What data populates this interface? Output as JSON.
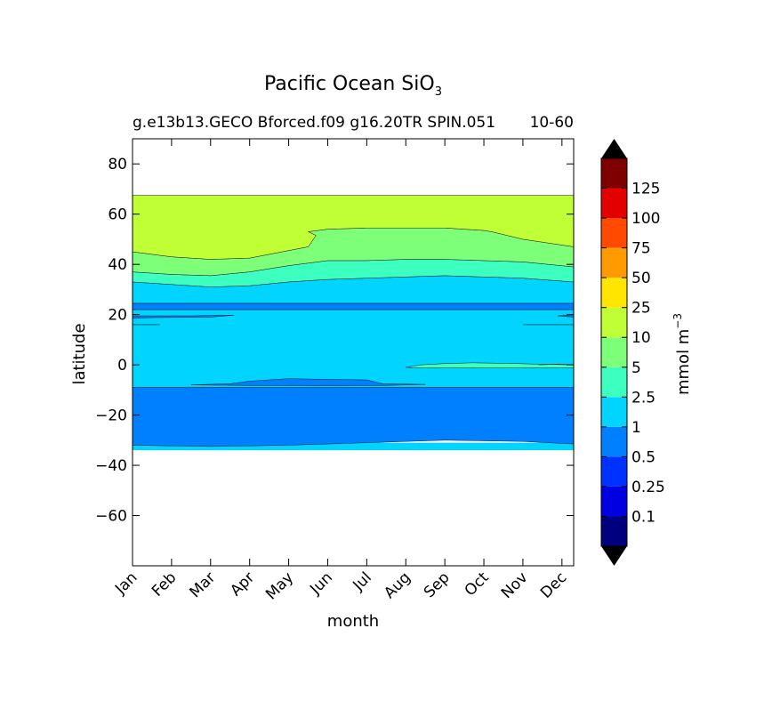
{
  "chart_data": {
    "type": "heatmap",
    "title": "Pacific Ocean SiO",
    "title_subscript": "3",
    "subtitle_left": "g.e13b13.GECO Bforced.f09 g16.20TR SPIN.051",
    "subtitle_right": "10-60",
    "xlabel": "month",
    "ylabel": "latitude",
    "x_categories": [
      "Jan",
      "Feb",
      "Mar",
      "Apr",
      "May",
      "Jun",
      "Jul",
      "Aug",
      "Sep",
      "Oct",
      "Nov",
      "Dec"
    ],
    "xlim": [
      0,
      11.3
    ],
    "ylim": [
      -80,
      90
    ],
    "y_ticks": [
      80,
      60,
      40,
      20,
      0,
      -20,
      -40,
      -60
    ],
    "y_tick_labels": [
      "80",
      "60",
      "40",
      "20",
      "0",
      "−20",
      "−40",
      "−60"
    ],
    "grid": false,
    "colorbar": {
      "label_text": "mmol m",
      "label_superscript": "−3",
      "levels": [
        0,
        0.1,
        0.25,
        0.5,
        1,
        2.5,
        5,
        10,
        25,
        50,
        75,
        100,
        125,
        150
      ],
      "tick_labels": [
        "0.1",
        "0.25",
        "0.5",
        "1",
        "2.5",
        "5",
        "10",
        "25",
        "50",
        "75",
        "100",
        "125"
      ],
      "colors": [
        "#00007f",
        "#0000e0",
        "#0032ff",
        "#0080ff",
        "#00d4ff",
        "#3dffc0",
        "#7eff7a",
        "#c0ff36",
        "#ffe500",
        "#ff9a00",
        "#ff4a00",
        "#e30000",
        "#7f0000"
      ],
      "extend_colors": [
        "#000000",
        "#000000"
      ]
    },
    "regions": [
      {
        "level": 1,
        "color": "#00d4ff",
        "upper": [
          [
            0,
            -34
          ],
          [
            11.3,
            -34
          ]
        ],
        "lower": [
          [
            0,
            -34
          ],
          [
            11.3,
            -34
          ]
        ],
        "note_fill": "band -34 to -31"
      },
      {
        "level": 0.5,
        "color": "#0080ff",
        "upper": [
          [
            0,
            -9
          ],
          [
            11.3,
            -9
          ]
        ],
        "lower": [
          [
            0,
            -32
          ],
          [
            2,
            -32.5
          ],
          [
            4,
            -32
          ],
          [
            6,
            -31
          ],
          [
            8,
            -30
          ],
          [
            10,
            -30.5
          ],
          [
            11.3,
            -31.5
          ]
        ]
      },
      {
        "level": 1,
        "color": "#00d4ff",
        "upper": [
          [
            0,
            22
          ],
          [
            11.3,
            22
          ]
        ],
        "lower": [
          [
            0,
            -9
          ],
          [
            11.3,
            -9
          ]
        ]
      },
      {
        "level": 0.5,
        "color": "#0080ff",
        "upper": [
          [
            0,
            24.5
          ],
          [
            11.3,
            24.5
          ]
        ],
        "lower": [
          [
            0,
            22
          ],
          [
            11.3,
            22
          ]
        ]
      },
      {
        "level": 1,
        "color": "#00d4ff",
        "upper": [
          [
            0,
            33
          ],
          [
            1,
            32
          ],
          [
            2,
            31
          ],
          [
            3,
            31.5
          ],
          [
            4,
            33
          ],
          [
            5,
            34
          ],
          [
            6,
            34.5
          ],
          [
            7,
            35
          ],
          [
            8,
            35.5
          ],
          [
            9,
            35
          ],
          [
            10,
            34.5
          ],
          [
            11.3,
            33
          ]
        ],
        "lower": [
          [
            0,
            24.5
          ],
          [
            11.3,
            24.5
          ]
        ]
      },
      {
        "level": 2.5,
        "color": "#3dffc0",
        "upper": [
          [
            0,
            37
          ],
          [
            1,
            36
          ],
          [
            2,
            35.5
          ],
          [
            3,
            37
          ],
          [
            4,
            39.5
          ],
          [
            5,
            41.5
          ],
          [
            6,
            41.5
          ],
          [
            7,
            42
          ],
          [
            8,
            42
          ],
          [
            9,
            41.5
          ],
          [
            10,
            41
          ],
          [
            11.3,
            39
          ]
        ],
        "lower": [
          [
            0,
            33
          ],
          [
            1,
            32
          ],
          [
            2,
            31
          ],
          [
            3,
            31.5
          ],
          [
            4,
            33
          ],
          [
            5,
            34
          ],
          [
            6,
            34.5
          ],
          [
            7,
            35
          ],
          [
            8,
            35.5
          ],
          [
            9,
            35
          ],
          [
            10,
            34.5
          ],
          [
            11.3,
            33
          ]
        ]
      },
      {
        "level": 5,
        "color": "#7eff7a",
        "upper": [
          [
            0,
            45
          ],
          [
            1,
            43
          ],
          [
            2,
            42
          ],
          [
            3,
            42.5
          ],
          [
            3.5,
            44
          ],
          [
            4,
            45.5
          ],
          [
            4.5,
            47
          ],
          [
            4.7,
            51.5
          ],
          [
            4.5,
            53
          ],
          [
            5,
            54
          ],
          [
            6,
            54.5
          ],
          [
            7,
            54.5
          ],
          [
            8,
            54.5
          ],
          [
            9,
            53.5
          ],
          [
            9.2,
            53
          ],
          [
            10,
            50
          ],
          [
            11.3,
            47
          ]
        ],
        "lower": [
          [
            0,
            37
          ],
          [
            1,
            36
          ],
          [
            2,
            35.5
          ],
          [
            3,
            37
          ],
          [
            4,
            39.5
          ],
          [
            5,
            41.5
          ],
          [
            6,
            41.5
          ],
          [
            7,
            42
          ],
          [
            8,
            42
          ],
          [
            9,
            41.5
          ],
          [
            10,
            41
          ],
          [
            11.3,
            39
          ]
        ]
      },
      {
        "level": 10,
        "color": "#c0ff36",
        "upper": [
          [
            0,
            67.5
          ],
          [
            11.3,
            67.5
          ]
        ],
        "lower": [
          [
            0,
            45
          ],
          [
            1,
            43
          ],
          [
            2,
            42
          ],
          [
            3,
            42.5
          ],
          [
            3.5,
            44
          ],
          [
            4,
            45.5
          ],
          [
            4.5,
            47
          ],
          [
            4.7,
            51.5
          ],
          [
            4.5,
            53
          ],
          [
            5,
            54
          ],
          [
            6,
            54.5
          ],
          [
            7,
            54.5
          ],
          [
            8,
            54.5
          ],
          [
            9,
            53.5
          ],
          [
            9.2,
            53
          ],
          [
            10,
            50
          ],
          [
            11.3,
            47
          ]
        ]
      }
    ],
    "patches": [
      {
        "level": 2.5,
        "color": "#3dffc0",
        "points": [
          [
            7,
            -1
          ],
          [
            7.4,
            0
          ],
          [
            8,
            0.5
          ],
          [
            8.7,
            0.8
          ],
          [
            9.6,
            0.6
          ],
          [
            10.3,
            0.3
          ],
          [
            11.3,
            0
          ],
          [
            11.3,
            -1.2
          ],
          [
            10.3,
            -1.2
          ],
          [
            9.5,
            -1.3
          ],
          [
            8.5,
            -1.2
          ],
          [
            7.5,
            -1.3
          ]
        ]
      },
      {
        "level": 0.5,
        "color": "#0080ff",
        "points": [
          [
            1.5,
            -8
          ],
          [
            2.5,
            -7.5
          ],
          [
            3,
            -6.5
          ],
          [
            3.5,
            -6
          ],
          [
            4,
            -5.5
          ],
          [
            5,
            -5.8
          ],
          [
            6,
            -6
          ],
          [
            6.4,
            -7.5
          ],
          [
            7.5,
            -7.8
          ],
          [
            6.5,
            -8.2
          ],
          [
            5,
            -8.3
          ],
          [
            3,
            -8.2
          ]
        ]
      },
      {
        "level": 0.5,
        "color": "#0080ff",
        "points": [
          [
            0,
            19.5
          ],
          [
            1.5,
            19.5
          ],
          [
            2.6,
            19.8
          ],
          [
            2,
            19
          ],
          [
            0.5,
            18.8
          ],
          [
            0,
            18.5
          ]
        ]
      },
      {
        "level": 0.5,
        "color": "#0080ff",
        "points": [
          [
            11.3,
            20
          ],
          [
            10.9,
            19.5
          ],
          [
            11.3,
            19
          ]
        ]
      }
    ],
    "contour_lines": [
      [
        [
          0,
          16
        ],
        [
          0.7,
          16
        ]
      ],
      [
        [
          10,
          16
        ],
        [
          11.3,
          16
        ]
      ],
      [
        [
          10.4,
          0
        ],
        [
          10.9,
          0.3
        ],
        [
          11.3,
          0
        ]
      ]
    ]
  }
}
